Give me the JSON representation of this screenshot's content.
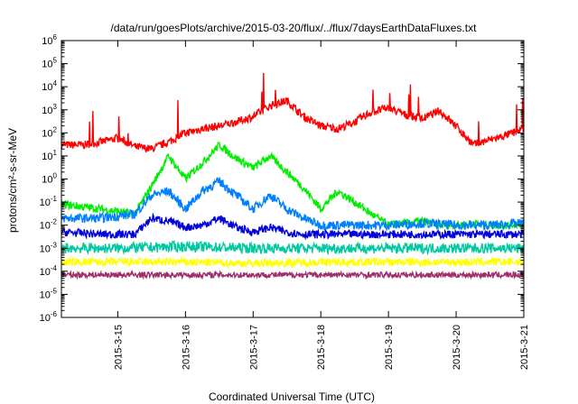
{
  "chart_data": {
    "type": "line",
    "title": "/data/run/goesPlots/archive/2015-03-20/flux/../flux/7daysEarthDataFluxes.txt",
    "xlabel": "Coordinated Universal Time (UTC)",
    "ylabel": "protons/cm²-s-sr-MeV",
    "y_scale": "log",
    "ylim": [
      1e-06,
      1000000.0
    ],
    "y_ticks": [
      {
        "exp": "-6",
        "value": 1e-06
      },
      {
        "exp": "-5",
        "value": 1e-05
      },
      {
        "exp": "-4",
        "value": 0.0001
      },
      {
        "exp": "-3",
        "value": 0.001
      },
      {
        "exp": "-2",
        "value": 0.01
      },
      {
        "exp": "-1",
        "value": 0.1
      },
      {
        "exp": "0",
        "value": 1
      },
      {
        "exp": "1",
        "value": 10.0
      },
      {
        "exp": "2",
        "value": 100.0
      },
      {
        "exp": "3",
        "value": 1000.0
      },
      {
        "exp": "4",
        "value": 10000.0
      },
      {
        "exp": "5",
        "value": 100000.0
      },
      {
        "exp": "6",
        "value": 1000000.0
      }
    ],
    "xlim": [
      "2015-03-14T04:00",
      "2015-03-21T00:00"
    ],
    "x_ticks": [
      "2015-3-15",
      "2015-3-16",
      "2015-3-17",
      "2015-3-18",
      "2015-3-19",
      "2015-3-20",
      "2015-3-21"
    ],
    "grid": false,
    "legend": "none",
    "series": [
      {
        "color": "#ff0000",
        "x": [
          "2015-03-14T04:00",
          "2015-03-14T12:00",
          "2015-03-14T18:00",
          "2015-03-15T00:00",
          "2015-03-15T06:00",
          "2015-03-15T12:00",
          "2015-03-15T18:00",
          "2015-03-16T00:00",
          "2015-03-16T06:00",
          "2015-03-16T12:00",
          "2015-03-16T18:00",
          "2015-03-17T00:00",
          "2015-03-17T06:00",
          "2015-03-17T12:00",
          "2015-03-17T18:00",
          "2015-03-18T00:00",
          "2015-03-18T06:00",
          "2015-03-18T12:00",
          "2015-03-18T18:00",
          "2015-03-19T00:00",
          "2015-03-19T06:00",
          "2015-03-19T12:00",
          "2015-03-19T18:00",
          "2015-03-20T00:00",
          "2015-03-20T06:00",
          "2015-03-20T12:00",
          "2015-03-20T18:00",
          "2015-03-21T00:00"
        ],
        "values": [
          30,
          30,
          40,
          60,
          25,
          20,
          40,
          100,
          150,
          200,
          300,
          500,
          1500,
          2500,
          500,
          200,
          150,
          300,
          800,
          1200,
          600,
          400,
          900,
          200,
          30,
          50,
          80,
          150
        ]
      },
      {
        "color": "#00ee00",
        "x": [
          "2015-03-14T04:00",
          "2015-03-14T18:00",
          "2015-03-15T06:00",
          "2015-03-15T12:00",
          "2015-03-15T18:00",
          "2015-03-16T00:00",
          "2015-03-16T06:00",
          "2015-03-16T12:00",
          "2015-03-16T18:00",
          "2015-03-17T00:00",
          "2015-03-17T06:00",
          "2015-03-17T12:00",
          "2015-03-17T18:00",
          "2015-03-18T00:00",
          "2015-03-18T06:00",
          "2015-03-18T12:00",
          "2015-03-18T18:00",
          "2015-03-19T00:00",
          "2015-03-19T06:00",
          "2015-03-19T12:00",
          "2015-03-19T18:00",
          "2015-03-20T00:00",
          "2015-03-20T06:00",
          "2015-03-20T12:00",
          "2015-03-20T18:00",
          "2015-03-21T00:00"
        ],
        "values": [
          0.08,
          0.05,
          0.03,
          0.5,
          10,
          1,
          5,
          30,
          8,
          3,
          10,
          2,
          0.4,
          0.05,
          0.3,
          0.1,
          0.03,
          0.01,
          0.012,
          0.015,
          0.01,
          0.01,
          0.012,
          0.01,
          0.01,
          0.012
        ]
      },
      {
        "color": "#0080ff",
        "x": [
          "2015-03-14T04:00",
          "2015-03-14T18:00",
          "2015-03-15T06:00",
          "2015-03-15T12:00",
          "2015-03-15T18:00",
          "2015-03-16T00:00",
          "2015-03-16T06:00",
          "2015-03-16T12:00",
          "2015-03-16T18:00",
          "2015-03-17T00:00",
          "2015-03-17T06:00",
          "2015-03-17T12:00",
          "2015-03-17T18:00",
          "2015-03-18T00:00",
          "2015-03-18T12:00",
          "2015-03-19T00:00",
          "2015-03-19T12:00",
          "2015-03-20T00:00",
          "2015-03-20T12:00",
          "2015-03-21T00:00"
        ],
        "values": [
          0.02,
          0.02,
          0.03,
          0.2,
          0.3,
          0.05,
          0.3,
          0.8,
          0.2,
          0.05,
          0.2,
          0.05,
          0.02,
          0.01,
          0.01,
          0.01,
          0.012,
          0.01,
          0.01,
          0.012
        ]
      },
      {
        "color": "#0000dd",
        "x": [
          "2015-03-14T04:00",
          "2015-03-14T18:00",
          "2015-03-15T06:00",
          "2015-03-15T12:00",
          "2015-03-15T18:00",
          "2015-03-16T00:00",
          "2015-03-16T06:00",
          "2015-03-16T12:00",
          "2015-03-16T18:00",
          "2015-03-17T00:00",
          "2015-03-17T06:00",
          "2015-03-17T12:00",
          "2015-03-17T18:00",
          "2015-03-18T00:00",
          "2015-03-18T12:00",
          "2015-03-19T00:00",
          "2015-03-19T12:00",
          "2015-03-20T00:00",
          "2015-03-20T12:00",
          "2015-03-21T00:00"
        ],
        "values": [
          0.005,
          0.004,
          0.004,
          0.02,
          0.015,
          0.008,
          0.01,
          0.02,
          0.008,
          0.005,
          0.008,
          0.005,
          0.004,
          0.004,
          0.004,
          0.004,
          0.004,
          0.004,
          0.004,
          0.004
        ]
      },
      {
        "color": "#00c8a0",
        "x": [
          "2015-03-14T04:00",
          "2015-03-15T00:00",
          "2015-03-16T00:00",
          "2015-03-17T00:00",
          "2015-03-18T00:00",
          "2015-03-19T00:00",
          "2015-03-20T00:00",
          "2015-03-21T00:00"
        ],
        "values": [
          0.001,
          0.001,
          0.0012,
          0.001,
          0.001,
          0.001,
          0.001,
          0.001
        ]
      },
      {
        "color": "#ffff00",
        "x": [
          "2015-03-14T04:00",
          "2015-03-15T00:00",
          "2015-03-16T00:00",
          "2015-03-17T00:00",
          "2015-03-18T00:00",
          "2015-03-19T00:00",
          "2015-03-20T00:00",
          "2015-03-21T00:00"
        ],
        "values": [
          0.00025,
          0.00025,
          0.00025,
          0.00022,
          0.00025,
          0.00025,
          0.00025,
          0.00025
        ]
      },
      {
        "color": "#a0306a",
        "x": [
          "2015-03-14T04:00",
          "2015-03-15T00:00",
          "2015-03-16T00:00",
          "2015-03-17T00:00",
          "2015-03-18T00:00",
          "2015-03-19T00:00",
          "2015-03-20T00:00",
          "2015-03-21T00:00"
        ],
        "values": [
          7e-05,
          7e-05,
          7e-05,
          7e-05,
          7e-05,
          7e-05,
          7e-05,
          7e-05
        ]
      }
    ]
  }
}
